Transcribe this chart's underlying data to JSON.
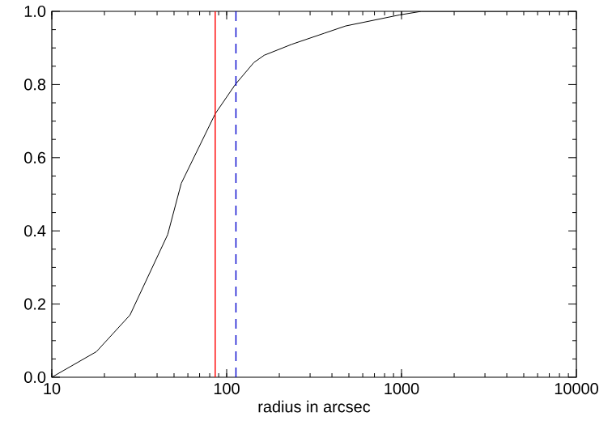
{
  "chart_data": {
    "type": "line",
    "xlabel": "radius in arcsec",
    "log": "x",
    "x": [
      10,
      18,
      28,
      46,
      55,
      86,
      112,
      143,
      164,
      236,
      361,
      479,
      970,
      1300,
      10000
    ],
    "series": [
      {
        "color": "#000000",
        "values": [
          0.0,
          0.07,
          0.17,
          0.39,
          0.53,
          0.72,
          0.8,
          0.86,
          0.88,
          0.91,
          0.94,
          0.96,
          0.99,
          1.0,
          1.0
        ]
      }
    ],
    "xlim": [
      10,
      10000
    ],
    "ylim": [
      0,
      1
    ],
    "xticks": [
      10,
      100,
      1000,
      10000
    ],
    "yticks": [
      {
        "value": 0,
        "label": "0.0"
      },
      {
        "value": 0.2,
        "label": "0.2"
      },
      {
        "value": 0.4,
        "label": "0.4"
      },
      {
        "value": 0.6,
        "label": "0.6"
      },
      {
        "value": 0.8,
        "label": "0.8"
      },
      {
        "value": 1,
        "label": "1.0"
      }
    ],
    "ref_lines": [
      {
        "axis": "x",
        "value": 86,
        "color": "#ff0000",
        "line_style": "solid"
      },
      {
        "axis": "x",
        "value": 113,
        "color": "#0000cc",
        "line_style": "dashed"
      }
    ],
    "grid": false,
    "legend": false,
    "marker": "none",
    "line_style": "solid"
  }
}
